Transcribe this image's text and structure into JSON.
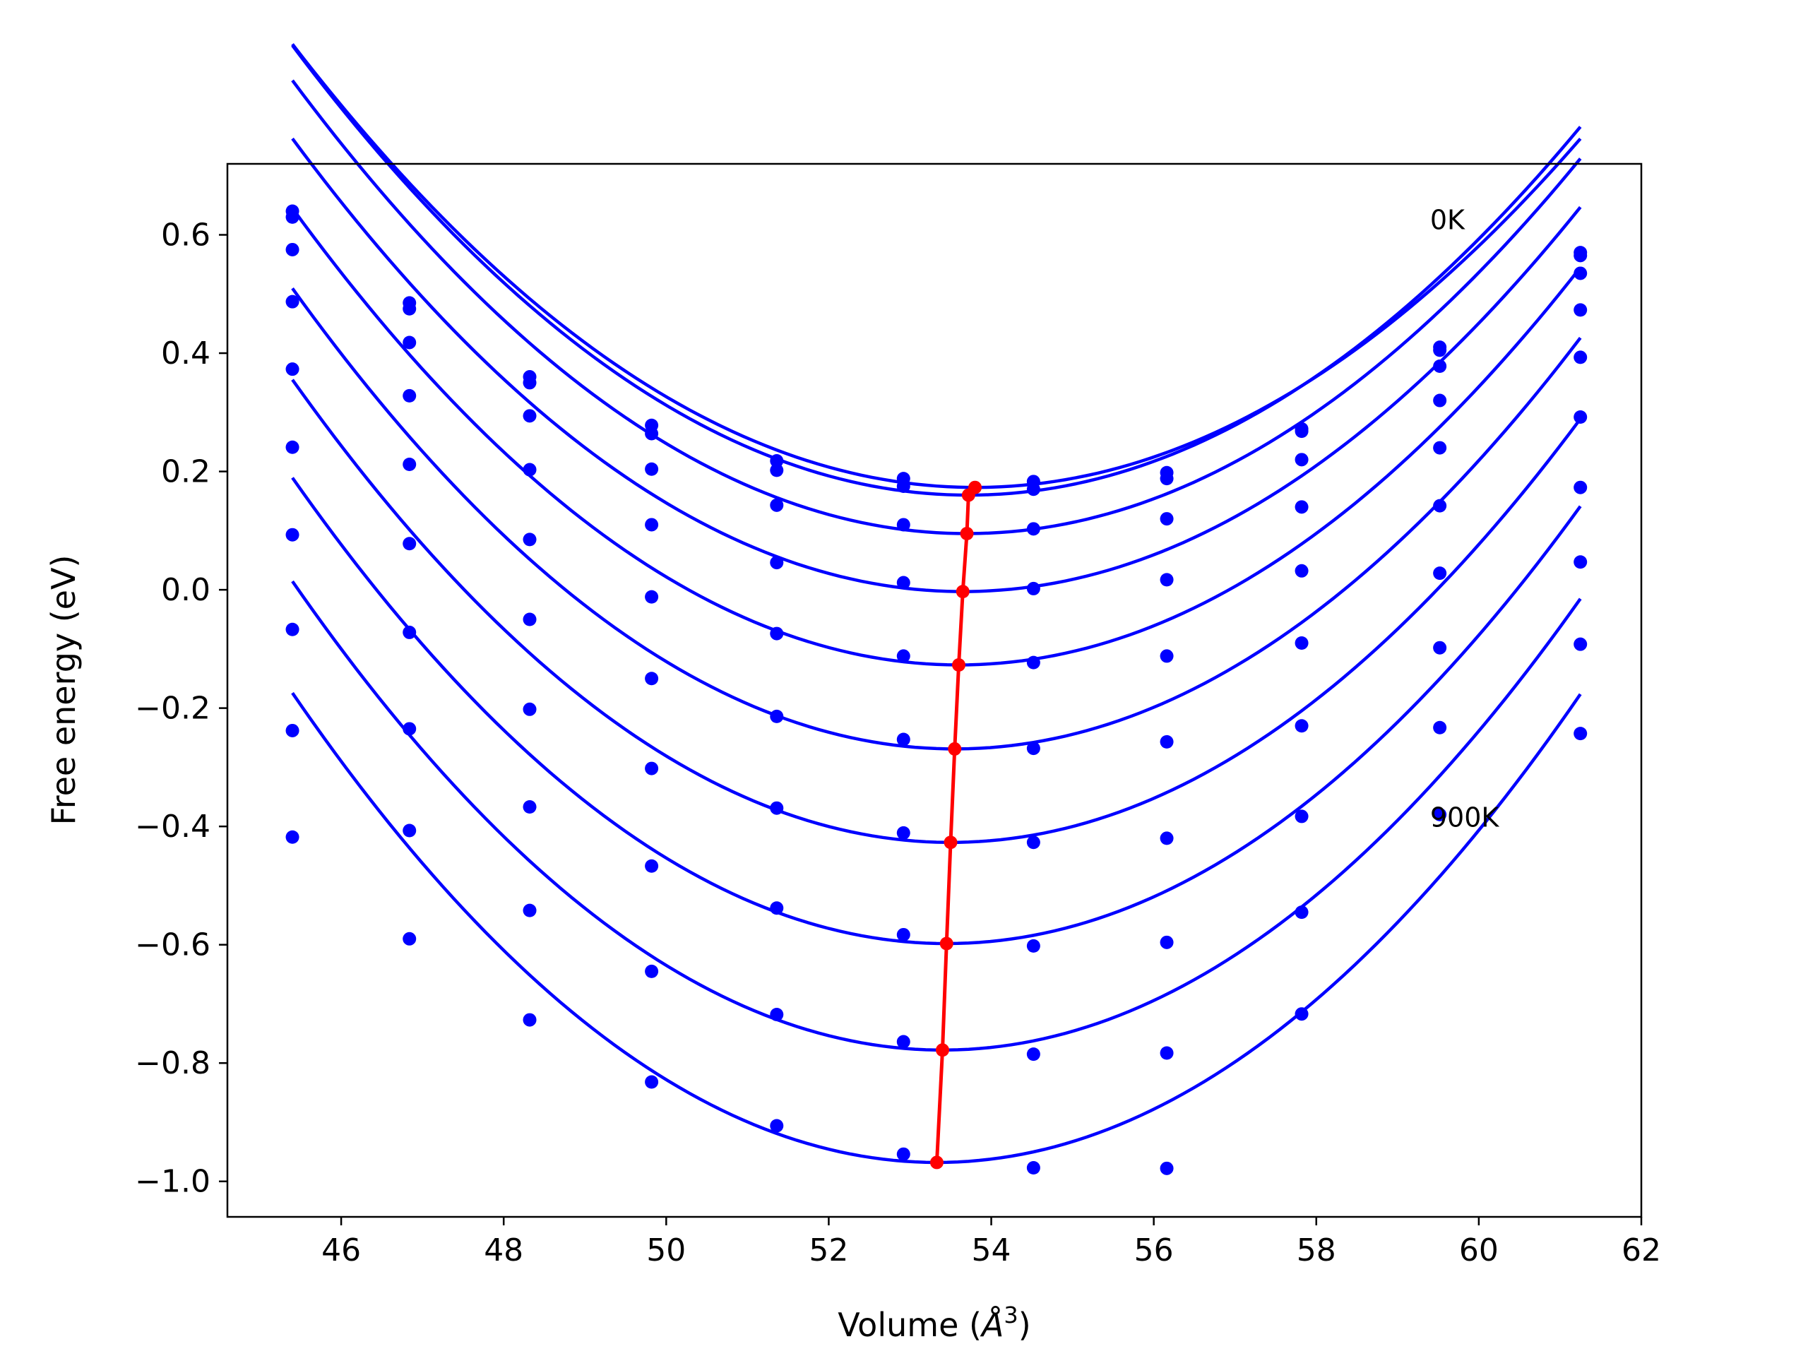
{
  "chart_data": {
    "type": "scatter",
    "title": "",
    "xlabel": "Volume (",
    "xlabel_symbol": "Å",
    "xlabel_exp": "3",
    "xlabel_close": ")",
    "ylabel": "Free energy (eV)",
    "xlim": [
      44.6,
      62.0
    ],
    "ylim": [
      -1.06,
      0.72
    ],
    "x_ticks": [
      46,
      48,
      50,
      52,
      54,
      56,
      58,
      60,
      62
    ],
    "x_tick_labels": [
      "46",
      "48",
      "50",
      "52",
      "54",
      "56",
      "58",
      "60",
      "62"
    ],
    "y_ticks": [
      -1.0,
      -0.8,
      -0.6,
      -0.4,
      -0.2,
      0.0,
      0.2,
      0.4,
      0.6
    ],
    "y_tick_labels": [
      "−1.0",
      "−0.8",
      "−0.6",
      "−0.4",
      "−0.2",
      "0.0",
      "0.2",
      "0.4",
      "0.6"
    ],
    "grid": false,
    "colors": {
      "points": "#0000ff",
      "fits": "#0000ff",
      "minima": "#ff0000"
    },
    "volumes": [
      45.4,
      46.84,
      48.32,
      49.82,
      51.36,
      52.92,
      54.52,
      56.16,
      57.82,
      59.52,
      61.25
    ],
    "series": [
      {
        "y": [
          0.64,
          0.485,
          0.36,
          0.278,
          0.218,
          0.188,
          0.183,
          0.198,
          0.272,
          0.41,
          0.57
        ],
        "fit": {
          "a": 0.01062,
          "v0": 53.8,
          "e0": 0.173
        }
      },
      {
        "y": [
          0.63,
          0.475,
          0.35,
          0.264,
          0.202,
          0.175,
          0.17,
          0.188,
          0.268,
          0.405,
          0.565
        ],
        "fit": {
          "a": 0.01098,
          "v0": 53.72,
          "e0": 0.16
        }
      },
      {
        "y": [
          0.575,
          0.418,
          0.294,
          0.204,
          0.143,
          0.11,
          0.103,
          0.12,
          0.22,
          0.378,
          0.535
        ],
        "fit": {
          "a": 0.01112,
          "v0": 53.7,
          "e0": 0.095
        }
      },
      {
        "y": [
          0.487,
          0.328,
          0.203,
          0.11,
          0.046,
          0.012,
          0.002,
          0.017,
          0.14,
          0.32,
          0.473
        ],
        "fit": {
          "a": 0.01125,
          "v0": 53.65,
          "e0": -0.003
        }
      },
      {
        "y": [
          0.373,
          0.212,
          0.085,
          -0.012,
          -0.074,
          -0.112,
          -0.123,
          -0.112,
          0.032,
          0.24,
          0.393
        ],
        "fit": {
          "a": 0.01148,
          "v0": 53.6,
          "e0": -0.127
        }
      },
      {
        "y": [
          0.241,
          0.078,
          -0.05,
          -0.15,
          -0.214,
          -0.253,
          -0.268,
          -0.257,
          -0.09,
          0.142,
          0.292
        ],
        "fit": {
          "a": 0.01172,
          "v0": 53.55,
          "e0": -0.269
        }
      },
      {
        "y": [
          0.093,
          -0.072,
          -0.202,
          -0.302,
          -0.369,
          -0.411,
          -0.427,
          -0.42,
          -0.23,
          0.028,
          0.173
        ],
        "fit": {
          "a": 0.01192,
          "v0": 53.5,
          "e0": -0.427
        }
      },
      {
        "y": [
          -0.067,
          -0.235,
          -0.367,
          -0.467,
          -0.538,
          -0.583,
          -0.602,
          -0.596,
          -0.383,
          -0.098,
          0.047
        ],
        "fit": {
          "a": 0.01215,
          "v0": 53.45,
          "e0": -0.598
        }
      },
      {
        "y": [
          -0.238,
          -0.407,
          -0.542,
          -0.645,
          -0.718,
          -0.764,
          -0.785,
          -0.783,
          -0.545,
          -0.233,
          -0.092
        ],
        "fit": {
          "a": 0.01238,
          "v0": 53.4,
          "e0": -0.778
        }
      },
      {
        "y": [
          -0.418,
          -0.59,
          -0.727,
          -0.832,
          -0.906,
          -0.954,
          -0.977,
          -0.978,
          -0.717,
          -0.38,
          -0.243
        ],
        "fit": {
          "a": 0.01262,
          "v0": 53.33,
          "e0": -0.968
        }
      }
    ],
    "minima": {
      "x": [
        53.8,
        53.72,
        53.7,
        53.65,
        53.6,
        53.55,
        53.5,
        53.45,
        53.4,
        53.33
      ],
      "y": [
        0.173,
        0.16,
        0.095,
        -0.003,
        -0.127,
        -0.269,
        -0.427,
        -0.598,
        -0.778,
        -0.968
      ]
    },
    "annotations": [
      {
        "text": "0K",
        "x": 59.4,
        "y": 0.625
      },
      {
        "text": "900K",
        "x": 59.4,
        "y": -0.385
      }
    ]
  }
}
